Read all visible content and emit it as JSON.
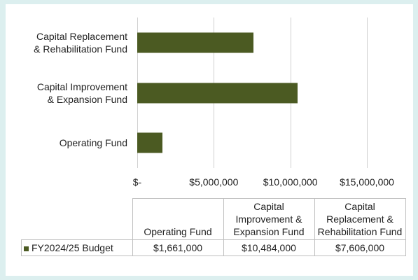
{
  "chart_data": {
    "type": "bar",
    "orientation": "horizontal",
    "categories": [
      "Operating Fund",
      "Capital Improvement\n& Expansion Fund",
      "Capital Replacement\n& Rehabilitation Fund"
    ],
    "series": [
      {
        "name": "FY2024/25 Budget",
        "color": "#4b5a22",
        "values": [
          1661000,
          10484000,
          7606000
        ],
        "value_labels": [
          "$1,661,000",
          "$10,484,000",
          "$7,606,000"
        ]
      }
    ],
    "xlim": [
      0,
      15000000
    ],
    "xticks": [
      {
        "value": 0,
        "label": "$-"
      },
      {
        "value": 5000000,
        "label": "$5,000,000"
      },
      {
        "value": 10000000,
        "label": "$10,000,000"
      },
      {
        "value": 15000000,
        "label": "$15,000,000"
      }
    ],
    "grid": true,
    "data_table": true
  }
}
